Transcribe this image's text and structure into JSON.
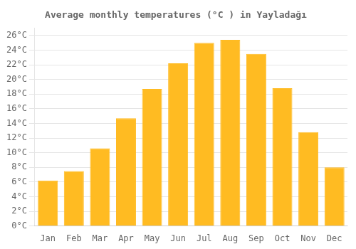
{
  "chart_data": {
    "type": "bar",
    "title": "Average monthly temperatures (°C ) in Yayladağı",
    "categories": [
      "Jan",
      "Feb",
      "Mar",
      "Apr",
      "May",
      "Jun",
      "Jul",
      "Aug",
      "Sep",
      "Oct",
      "Nov",
      "Dec"
    ],
    "values": [
      6.2,
      7.5,
      10.6,
      14.7,
      18.7,
      22.2,
      25.0,
      25.4,
      23.5,
      18.8,
      12.8,
      8.0
    ],
    "color": "#FFBB22",
    "ylim": [
      0,
      27
    ],
    "yticks": [
      {
        "value": 0,
        "label": "0°C"
      },
      {
        "value": 2,
        "label": "2°C"
      },
      {
        "value": 4,
        "label": "4°C"
      },
      {
        "value": 6,
        "label": "6°C"
      },
      {
        "value": 8,
        "label": "8°C"
      },
      {
        "value": 10,
        "label": "10°C"
      },
      {
        "value": 12,
        "label": "12°C"
      },
      {
        "value": 14,
        "label": "14°C"
      },
      {
        "value": 16,
        "label": "16°C"
      },
      {
        "value": 18,
        "label": "18°C"
      },
      {
        "value": 20,
        "label": "20°C"
      },
      {
        "value": 22,
        "label": "22°C"
      },
      {
        "value": 24,
        "label": "24°C"
      },
      {
        "value": 26,
        "label": "26°C"
      }
    ],
    "grid": true
  }
}
